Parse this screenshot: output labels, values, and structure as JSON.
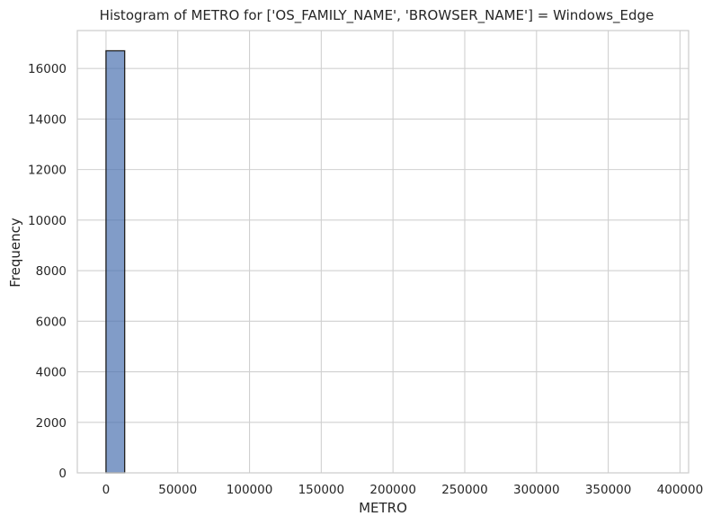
{
  "chart_data": {
    "type": "bar",
    "title": "Histogram of METRO for ['OS_FAMILY_NAME', 'BROWSER_NAME'] = Windows_Edge",
    "xlabel": "METRO",
    "ylabel": "Frequency",
    "xlim": [
      -20000,
      406000
    ],
    "ylim": [
      0,
      17500
    ],
    "xticks": [
      0,
      50000,
      100000,
      150000,
      200000,
      250000,
      300000,
      350000,
      400000
    ],
    "yticks": [
      0,
      2000,
      4000,
      6000,
      8000,
      10000,
      12000,
      14000,
      16000
    ],
    "grid": true,
    "bins": [
      {
        "x0": 0,
        "x1": 13000,
        "count": 16700
      }
    ],
    "bar_color": "#4c72b0",
    "edge_color": "#1f1f1f"
  }
}
